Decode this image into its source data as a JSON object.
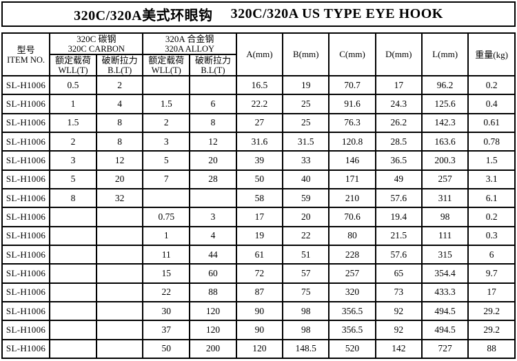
{
  "title": {
    "cn": "320C/320A美式环眼钩",
    "en": "320C/320A US TYPE EYE HOOK"
  },
  "header": {
    "item_no": {
      "cn": "型号",
      "en": "ITEM NO."
    },
    "carbon_group": {
      "cn": "320C 碳钢",
      "en": "320C CARBON"
    },
    "alloy_group": {
      "cn": "320A 合金钢",
      "en": "320A ALLOY"
    },
    "sub_wll": {
      "cn": "额定载荷",
      "en": "WLL(T)"
    },
    "sub_bl": {
      "cn": "破断拉力",
      "en": "B.L(T)"
    },
    "dims": [
      "A(mm)",
      "B(mm)",
      "C(mm)",
      "D(mm)",
      "L(mm)",
      "重量(kg)"
    ]
  },
  "rows": [
    [
      "SL-H1006",
      "0.5",
      "2",
      "",
      "",
      "16.5",
      "19",
      "70.7",
      "17",
      "96.2",
      "0.2"
    ],
    [
      "SL-H1006",
      "1",
      "4",
      "1.5",
      "6",
      "22.2",
      "25",
      "91.6",
      "24.3",
      "125.6",
      "0.4"
    ],
    [
      "SL-H1006",
      "1.5",
      "8",
      "2",
      "8",
      "27",
      "25",
      "76.3",
      "26.2",
      "142.3",
      "0.61"
    ],
    [
      "SL-H1006",
      "2",
      "8",
      "3",
      "12",
      "31.6",
      "31.5",
      "120.8",
      "28.5",
      "163.6",
      "0.78"
    ],
    [
      "SL-H1006",
      "3",
      "12",
      "5",
      "20",
      "39",
      "33",
      "146",
      "36.5",
      "200.3",
      "1.5"
    ],
    [
      "SL-H1006",
      "5",
      "20",
      "7",
      "28",
      "50",
      "40",
      "171",
      "49",
      "257",
      "3.1"
    ],
    [
      "SL-H1006",
      "8",
      "32",
      "",
      "",
      "58",
      "59",
      "210",
      "57.6",
      "311",
      "6.1"
    ],
    [
      "SL-H1006",
      "",
      "",
      "0.75",
      "3",
      "17",
      "20",
      "70.6",
      "19.4",
      "98",
      "0.2"
    ],
    [
      "SL-H1006",
      "",
      "",
      "1",
      "4",
      "19",
      "22",
      "80",
      "21.5",
      "111",
      "0.3"
    ],
    [
      "SL-H1006",
      "",
      "",
      "11",
      "44",
      "61",
      "51",
      "228",
      "57.6",
      "315",
      "6"
    ],
    [
      "SL-H1006",
      "",
      "",
      "15",
      "60",
      "72",
      "57",
      "257",
      "65",
      "354.4",
      "9.7"
    ],
    [
      "SL-H1006",
      "",
      "",
      "22",
      "88",
      "87",
      "75",
      "320",
      "73",
      "433.3",
      "17"
    ],
    [
      "SL-H1006",
      "",
      "",
      "30",
      "120",
      "90",
      "98",
      "356.5",
      "92",
      "494.5",
      "29.2"
    ],
    [
      "SL-H1006",
      "",
      "",
      "37",
      "120",
      "90",
      "98",
      "356.5",
      "92",
      "494.5",
      "29.2"
    ],
    [
      "SL-H1006",
      "",
      "",
      "50",
      "200",
      "120",
      "148.5",
      "520",
      "142",
      "727",
      "88"
    ]
  ],
  "colors": {
    "border": "#000000",
    "text": "#000000",
    "background": "#ffffff"
  }
}
